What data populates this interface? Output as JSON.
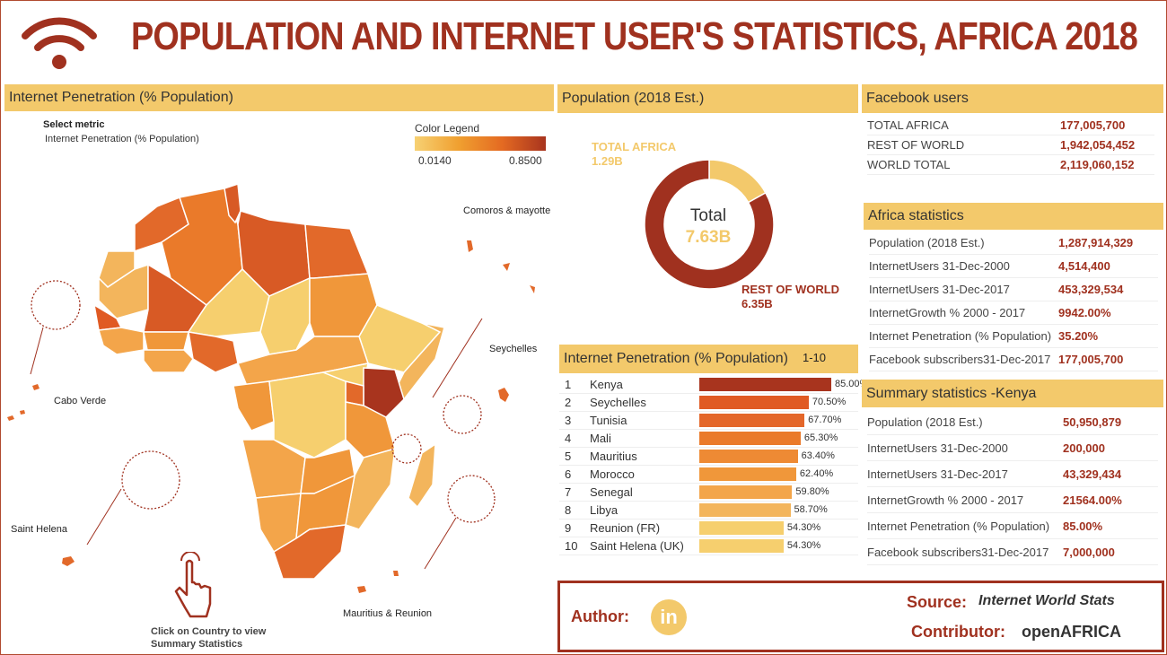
{
  "title": "POPULATION AND INTERNET USER'S STATISTICS, AFRICA 2018",
  "colors": {
    "accent": "#a0311f",
    "header_bg": "#f3c96b",
    "scale_low": "#f7d173",
    "scale_high": "#a8341e"
  },
  "icons": {
    "logo": "wifi-icon",
    "hand": "hand-pointer-icon",
    "linkedin": "linkedin-icon"
  },
  "map_panel": {
    "header": "Internet Penetration (% Population)",
    "select_metric_label": "Select metric",
    "select_metric_value": "Internet Penetration (% Population)",
    "legend_title": "Color Legend",
    "legend_min": "0.0140",
    "legend_max": "0.8500",
    "labels": {
      "comoros": "Comoros & mayotte",
      "seychelles": "Seychelles",
      "cabo_verde": "Cabo Verde",
      "saint_helena": "Saint Helena",
      "mauritius": "Mauritius & Reunion"
    },
    "click_note": "Click on Country to view Summary Statistics"
  },
  "population_panel": {
    "header": "Population (2018 Est.)",
    "center_title": "Total",
    "center_value": "7.63B",
    "africa_label": "TOTAL AFRICA",
    "africa_value": "1.29B",
    "rest_label": "REST OF WORLD",
    "rest_value": "6.35B"
  },
  "penetration_panel": {
    "header": "Internet Penetration (% Population)",
    "range": "1-10"
  },
  "chart_data": [
    {
      "type": "pie",
      "title": "Population (2018 Est.)",
      "categories": [
        "TOTAL AFRICA",
        "REST OF WORLD"
      ],
      "values": [
        1.29,
        6.35
      ],
      "unit": "B",
      "total": 7.63,
      "colors": [
        "#f3c96b",
        "#a0311f"
      ]
    },
    {
      "type": "bar",
      "orientation": "horizontal",
      "title": "Internet Penetration (% Population)",
      "ranks": [
        "1",
        "2",
        "3",
        "4",
        "5",
        "6",
        "7",
        "8",
        "9",
        "10"
      ],
      "categories": [
        "Kenya",
        "Seychelles",
        "Tunisia",
        "Mali",
        "Mauritius",
        "Morocco",
        "Senegal",
        "Libya",
        "Reunion (FR)",
        "Saint Helena (UK)"
      ],
      "values": [
        85.0,
        70.5,
        67.7,
        65.3,
        63.4,
        62.4,
        59.8,
        58.7,
        54.3,
        54.3
      ],
      "value_labels": [
        "85.00%",
        "70.50%",
        "67.70%",
        "65.30%",
        "63.40%",
        "62.40%",
        "59.80%",
        "58.70%",
        "54.30%",
        "54.30%"
      ],
      "xlim": [
        0,
        100
      ]
    }
  ],
  "facebook": {
    "header": "Facebook users",
    "rows": [
      {
        "label": "TOTAL AFRICA",
        "value": "177,005,700"
      },
      {
        "label": "REST OF WORLD",
        "value": "1,942,054,452"
      },
      {
        "label": "WORLD TOTAL",
        "value": "2,119,060,152"
      }
    ]
  },
  "africa_stats": {
    "header": "Africa statistics",
    "rows": [
      {
        "label": "Population  (2018 Est.)",
        "value": "1,287,914,329"
      },
      {
        "label": "InternetUsers  31-Dec-2000",
        "value": "4,514,400"
      },
      {
        "label": "InternetUsers  31-Dec-2017",
        "value": "453,329,534"
      },
      {
        "label": "InternetGrowth % 2000 - 2017",
        "value": "9942.00%"
      },
      {
        "label": "Internet Penetration  (% Population)",
        "value": "35.20%"
      },
      {
        "label": "Facebook  subscribers31-Dec-2017",
        "value": "177,005,700"
      }
    ]
  },
  "kenya_stats": {
    "header": "Summary statistics -Kenya",
    "rows": [
      {
        "label": "Population  (2018 Est.)",
        "value": "50,950,879"
      },
      {
        "label": "InternetUsers  31-Dec-2000",
        "value": "200,000"
      },
      {
        "label": "InternetUsers  31-Dec-2017",
        "value": "43,329,434"
      },
      {
        "label": "InternetGrowth % 2000 - 2017",
        "value": "21564.00%"
      },
      {
        "label": "Internet Penetration  (% Population)",
        "value": "85.00%"
      },
      {
        "label": "Facebook  subscribers31-Dec-2017",
        "value": "7,000,000"
      }
    ]
  },
  "footer": {
    "author_label": "Author:",
    "linkedin_text": "in",
    "source_label": "Source:",
    "source_value": "Internet World Stats",
    "contributor_label": "Contributor:",
    "contributor_value": "openAFRICA"
  }
}
